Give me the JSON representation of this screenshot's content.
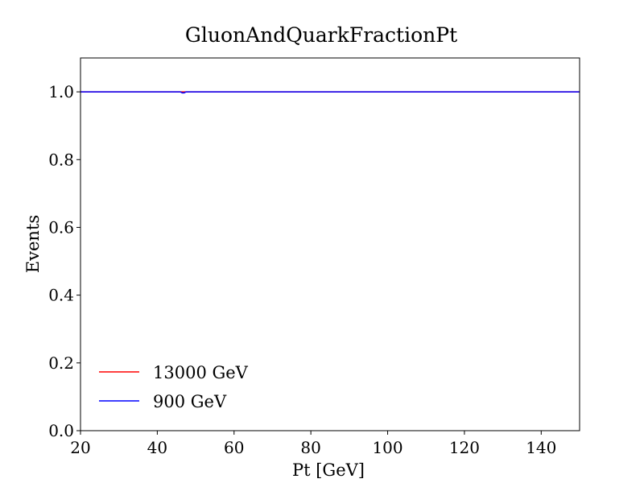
{
  "chart_data": {
    "type": "line",
    "title": "GluonAndQuarkFractionPt",
    "xlabel": "Pt [GeV]",
    "ylabel": "Events",
    "xlim": [
      20,
      150
    ],
    "ylim": [
      0.0,
      1.1
    ],
    "xticks": [
      20,
      40,
      60,
      80,
      100,
      120,
      140
    ],
    "xtick_labels": [
      "20",
      "40",
      "60",
      "80",
      "100",
      "120",
      "140"
    ],
    "yticks": [
      0.0,
      0.2,
      0.4,
      0.6,
      0.8,
      1.0
    ],
    "ytick_labels": [
      "0.0",
      "0.2",
      "0.4",
      "0.6",
      "0.8",
      "1.0"
    ],
    "grid": false,
    "legend_position": "lower-left",
    "series": [
      {
        "name": "13000 GeV",
        "color": "#ff0000",
        "x": [
          20,
          112,
          113,
          120,
          121,
          125,
          126,
          130,
          131,
          136,
          137,
          142,
          143,
          150
        ],
        "y": [
          1.0,
          1.0,
          1.0,
          1.0,
          1.0,
          1.0,
          1.0,
          1.0,
          1.0,
          1.0,
          1.0,
          1.0,
          1.0,
          1.0
        ]
      },
      {
        "name": "900 GeV",
        "color": "#0000ff",
        "x": [
          20,
          46,
          46.5,
          47,
          47.5,
          112,
          113,
          120,
          121,
          125,
          126,
          130,
          131,
          136,
          137,
          142,
          143,
          150
        ],
        "y": [
          1.0,
          1.0,
          0.997,
          0.997,
          1.0,
          1.0,
          1.0,
          1.0,
          1.0,
          1.0,
          1.0,
          1.0,
          1.0,
          1.0,
          1.0,
          1.0,
          1.0,
          1.0
        ]
      }
    ]
  }
}
